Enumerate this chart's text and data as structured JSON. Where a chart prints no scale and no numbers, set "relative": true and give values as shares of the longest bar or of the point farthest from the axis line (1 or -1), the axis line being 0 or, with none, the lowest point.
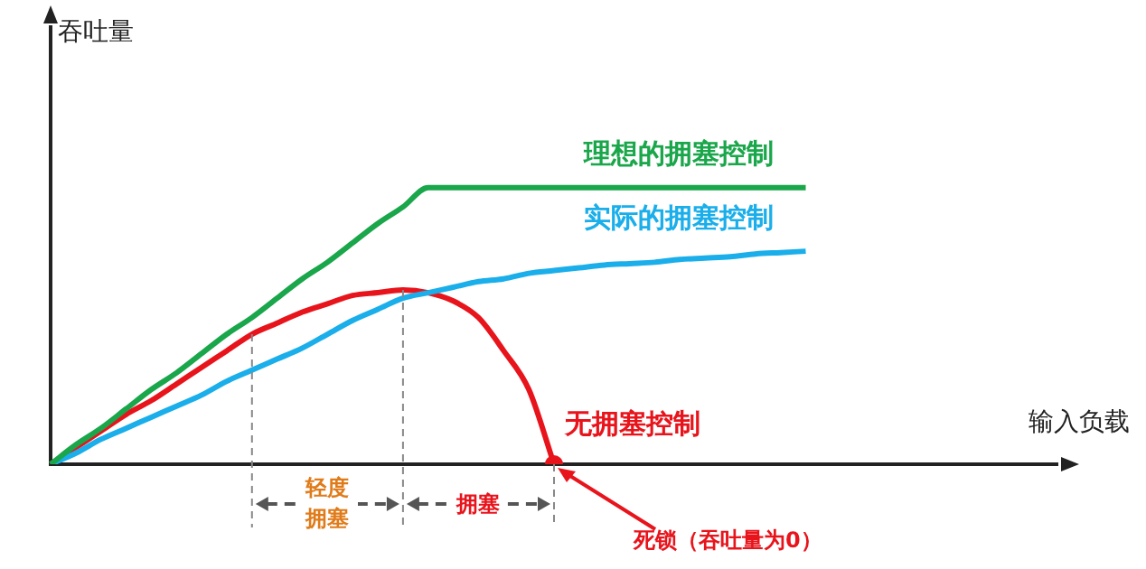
{
  "chart_data": {
    "type": "line",
    "relative": true,
    "xlabel": "输入负载",
    "categories": [
      null,
      null,
      null,
      null,
      null,
      null,
      null,
      null,
      null,
      null,
      null,
      null,
      null,
      null,
      null,
      null,
      null,
      null,
      null,
      null,
      null,
      null,
      null,
      null,
      null,
      null,
      null,
      null,
      null,
      null,
      null,
      null,
      null,
      null,
      null,
      null,
      null,
      null,
      null,
      null,
      null
    ],
    "series": [
      {
        "name": "理想的拥塞控制",
        "color": "#1aa64a",
        "values": [
          0,
          0.07,
          0.13,
          0.2,
          0.27,
          0.33,
          0.4,
          0.47,
          0.53,
          0.6,
          0.67,
          0.73,
          0.8,
          0.87,
          0.93,
          1,
          1,
          1,
          1,
          1,
          1,
          1,
          1,
          1,
          1,
          1,
          1,
          1,
          1,
          1,
          1,
          null,
          null,
          null,
          null,
          null,
          null,
          null,
          null,
          null,
          null
        ]
      },
      {
        "name": "实际的拥塞控制",
        "color": "#1aaeea",
        "values": [
          0,
          0.04,
          0.09,
          0.13,
          0.17,
          0.21,
          0.25,
          0.3,
          0.34,
          0.38,
          0.42,
          0.47,
          0.52,
          0.56,
          0.6,
          0.62,
          0.64,
          0.66,
          0.67,
          0.69,
          0.7,
          0.71,
          0.72,
          0.725,
          0.73,
          0.74,
          0.745,
          0.75,
          0.76,
          0.765,
          0.77,
          null,
          null,
          null,
          null,
          null,
          null,
          null,
          null,
          null,
          null
        ]
      },
      {
        "name": "无拥塞控制",
        "color": "#e8141c",
        "values": [
          0,
          0.06,
          0.12,
          0.18,
          0.23,
          0.29,
          0.35,
          0.41,
          0.47,
          0.51,
          0.55,
          0.58,
          0.61,
          0.62,
          0.63,
          0.62,
          0.59,
          0.53,
          0.41,
          0.27,
          0,
          null,
          null,
          null,
          null,
          null,
          null,
          null,
          null,
          null,
          null,
          null,
          null,
          null,
          null,
          null,
          null,
          null,
          null,
          null,
          null
        ]
      }
    ],
    "annotations": [
      "轻度拥塞",
      "拥塞",
      "死锁（吞吐量为0）",
      "吞吐量"
    ]
  }
}
